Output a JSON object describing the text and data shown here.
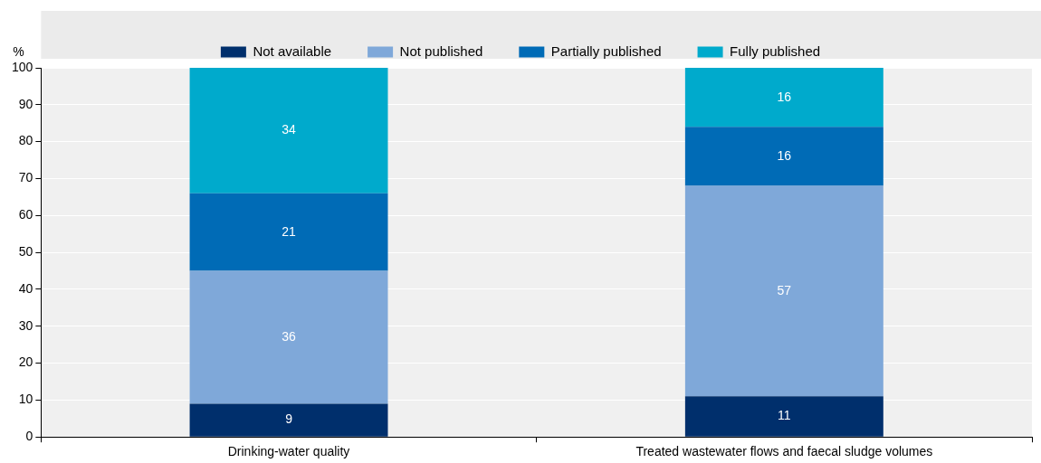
{
  "chart_data": {
    "type": "bar",
    "stacked": true,
    "ylabel": "%",
    "categories": [
      "Drinking-water quality",
      "Treated wastewater flows and faecal sludge volumes"
    ],
    "series": [
      {
        "name": "Not available",
        "color": "#002f6c",
        "values": [
          9,
          11
        ]
      },
      {
        "name": "Not published",
        "color": "#7fa8d9",
        "values": [
          36,
          57
        ]
      },
      {
        "name": "Partially published",
        "color": "#006bb6",
        "values": [
          21,
          16
        ]
      },
      {
        "name": "Fully published",
        "color": "#00aacc",
        "values": [
          34,
          16
        ]
      }
    ],
    "ylim": [
      0,
      100
    ],
    "yticks": [
      0,
      10,
      20,
      30,
      40,
      50,
      60,
      70,
      80,
      90,
      100
    ],
    "grid": "y",
    "legend": "top",
    "data_labels": true
  }
}
